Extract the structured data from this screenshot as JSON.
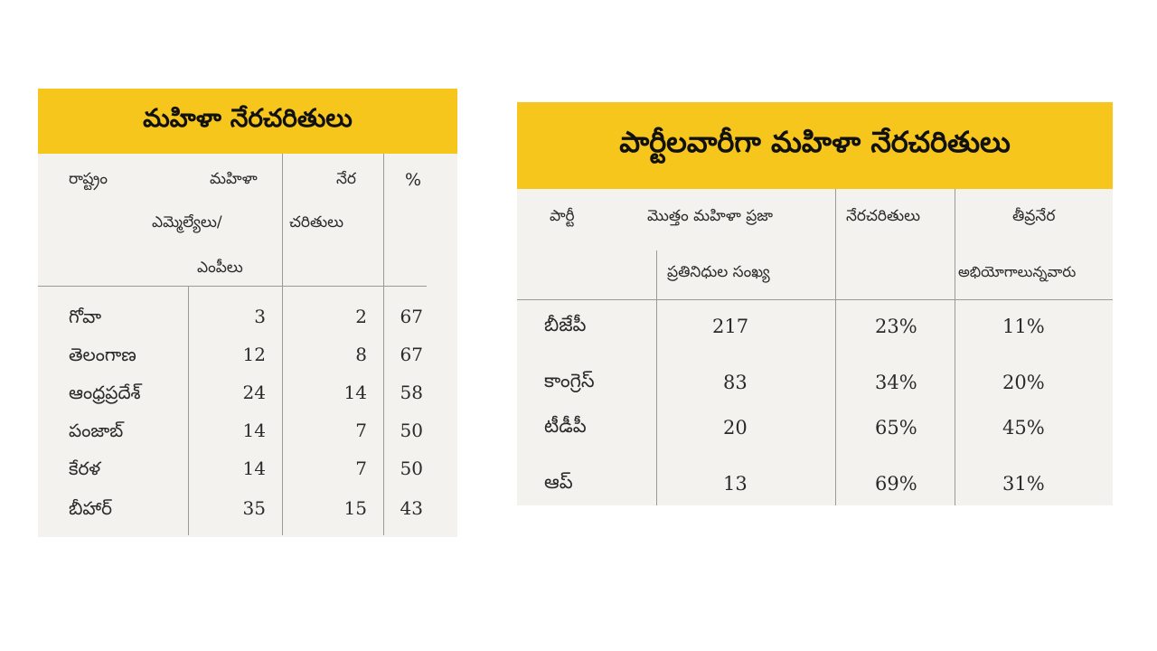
{
  "table1": {
    "title": "మహిళా నేరచరితులు",
    "headers": {
      "state": "రాష్ట్రం",
      "mla_line1": "మహిళా",
      "mla_line2": "ఎమ్మెల్యేలు/",
      "mla_line3": "ఎంపీలు",
      "crim_line1": "నేర",
      "crim_line2": "చరితులు",
      "pct": "%"
    },
    "rows": [
      {
        "state": "గోవా",
        "total": "3",
        "criminal": "2",
        "pct": "67"
      },
      {
        "state": "తెలంగాణ",
        "total": "12",
        "criminal": "8",
        "pct": "67"
      },
      {
        "state": "ఆంధ్రప్రదేశ్",
        "total": "24",
        "criminal": "14",
        "pct": "58"
      },
      {
        "state": "పంజాబ్",
        "total": "14",
        "criminal": "7",
        "pct": "50"
      },
      {
        "state": "కేరళ",
        "total": "14",
        "criminal": "7",
        "pct": "50"
      },
      {
        "state": "బీహార్",
        "total": "35",
        "criminal": "15",
        "pct": "43"
      }
    ]
  },
  "table2": {
    "title": "పార్టీలవారీగా మహిళా నేరచరితులు",
    "headers": {
      "party": "పార్టీ",
      "total_line1": "మొత్తం మహిళా ప్రజా",
      "total_line2": "ప్రతినిధుల సంఖ్య",
      "criminal": "నేరచరితులు",
      "serious_line1": "తీవ్రనేర",
      "serious_line2": "అభియోగాలున్నవారు"
    },
    "rows": [
      {
        "party": "బీజేపీ",
        "total": "217",
        "criminal": "23%",
        "serious": "11%"
      },
      {
        "party": "కాంగ్రెస్",
        "total": "83",
        "criminal": "34%",
        "serious": "20%"
      },
      {
        "party": "టీడీపీ",
        "total": "20",
        "criminal": "65%",
        "serious": "45%"
      },
      {
        "party": "ఆప్",
        "total": "13",
        "criminal": "69%",
        "serious": "31%"
      }
    ]
  }
}
